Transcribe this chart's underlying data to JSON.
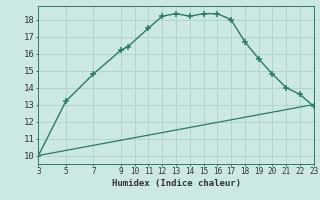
{
  "xlabel": "Humidex (Indice chaleur)",
  "curve1_x": [
    3,
    5,
    7,
    9,
    9.5,
    11,
    12,
    13,
    14,
    15,
    16,
    17,
    18,
    19,
    20,
    21,
    22,
    23
  ],
  "curve1_y": [
    10,
    13.2,
    14.8,
    16.2,
    16.4,
    17.5,
    18.2,
    18.35,
    18.2,
    18.35,
    18.35,
    18.0,
    16.7,
    15.7,
    14.8,
    14.0,
    13.6,
    12.9
  ],
  "curve2_x": [
    3,
    23
  ],
  "curve2_y": [
    10.0,
    13.0
  ],
  "line_color": "#2a7a6a",
  "bg_color": "#cce8e2",
  "grid_color": "#aaccca",
  "text_color": "#333333",
  "xlim": [
    3,
    23
  ],
  "ylim": [
    9.5,
    18.8
  ],
  "yticks": [
    10,
    11,
    12,
    13,
    14,
    15,
    16,
    17,
    18
  ],
  "xticks": [
    3,
    5,
    7,
    9,
    10,
    11,
    12,
    13,
    14,
    15,
    16,
    17,
    18,
    19,
    20,
    21,
    22,
    23
  ]
}
